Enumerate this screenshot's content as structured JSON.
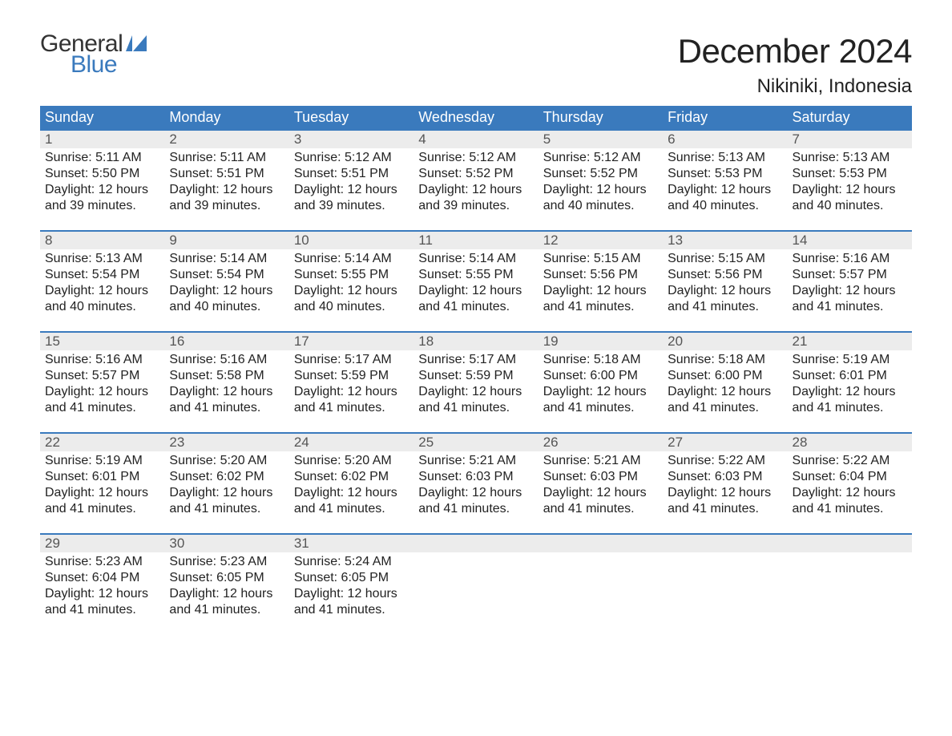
{
  "logo": {
    "text_general": "General",
    "text_blue": "Blue",
    "flag_color": "#3a7abd"
  },
  "title": "December 2024",
  "location": "Nikiniki, Indonesia",
  "colors": {
    "header_bg": "#3a7abd",
    "header_text": "#ffffff",
    "daynum_bg": "#ececec",
    "daynum_text": "#555555",
    "body_text": "#222222",
    "week_border": "#3a7abd",
    "page_bg": "#ffffff"
  },
  "typography": {
    "title_fontsize": 42,
    "location_fontsize": 24,
    "header_fontsize": 18,
    "daynum_fontsize": 17,
    "cell_fontsize": 16,
    "logo_fontsize": 30
  },
  "day_headers": [
    "Sunday",
    "Monday",
    "Tuesday",
    "Wednesday",
    "Thursday",
    "Friday",
    "Saturday"
  ],
  "weeks": [
    [
      {
        "n": "1",
        "sr": "Sunrise: 5:11 AM",
        "ss": "Sunset: 5:50 PM",
        "d1": "Daylight: 12 hours",
        "d2": "and 39 minutes."
      },
      {
        "n": "2",
        "sr": "Sunrise: 5:11 AM",
        "ss": "Sunset: 5:51 PM",
        "d1": "Daylight: 12 hours",
        "d2": "and 39 minutes."
      },
      {
        "n": "3",
        "sr": "Sunrise: 5:12 AM",
        "ss": "Sunset: 5:51 PM",
        "d1": "Daylight: 12 hours",
        "d2": "and 39 minutes."
      },
      {
        "n": "4",
        "sr": "Sunrise: 5:12 AM",
        "ss": "Sunset: 5:52 PM",
        "d1": "Daylight: 12 hours",
        "d2": "and 39 minutes."
      },
      {
        "n": "5",
        "sr": "Sunrise: 5:12 AM",
        "ss": "Sunset: 5:52 PM",
        "d1": "Daylight: 12 hours",
        "d2": "and 40 minutes."
      },
      {
        "n": "6",
        "sr": "Sunrise: 5:13 AM",
        "ss": "Sunset: 5:53 PM",
        "d1": "Daylight: 12 hours",
        "d2": "and 40 minutes."
      },
      {
        "n": "7",
        "sr": "Sunrise: 5:13 AM",
        "ss": "Sunset: 5:53 PM",
        "d1": "Daylight: 12 hours",
        "d2": "and 40 minutes."
      }
    ],
    [
      {
        "n": "8",
        "sr": "Sunrise: 5:13 AM",
        "ss": "Sunset: 5:54 PM",
        "d1": "Daylight: 12 hours",
        "d2": "and 40 minutes."
      },
      {
        "n": "9",
        "sr": "Sunrise: 5:14 AM",
        "ss": "Sunset: 5:54 PM",
        "d1": "Daylight: 12 hours",
        "d2": "and 40 minutes."
      },
      {
        "n": "10",
        "sr": "Sunrise: 5:14 AM",
        "ss": "Sunset: 5:55 PM",
        "d1": "Daylight: 12 hours",
        "d2": "and 40 minutes."
      },
      {
        "n": "11",
        "sr": "Sunrise: 5:14 AM",
        "ss": "Sunset: 5:55 PM",
        "d1": "Daylight: 12 hours",
        "d2": "and 41 minutes."
      },
      {
        "n": "12",
        "sr": "Sunrise: 5:15 AM",
        "ss": "Sunset: 5:56 PM",
        "d1": "Daylight: 12 hours",
        "d2": "and 41 minutes."
      },
      {
        "n": "13",
        "sr": "Sunrise: 5:15 AM",
        "ss": "Sunset: 5:56 PM",
        "d1": "Daylight: 12 hours",
        "d2": "and 41 minutes."
      },
      {
        "n": "14",
        "sr": "Sunrise: 5:16 AM",
        "ss": "Sunset: 5:57 PM",
        "d1": "Daylight: 12 hours",
        "d2": "and 41 minutes."
      }
    ],
    [
      {
        "n": "15",
        "sr": "Sunrise: 5:16 AM",
        "ss": "Sunset: 5:57 PM",
        "d1": "Daylight: 12 hours",
        "d2": "and 41 minutes."
      },
      {
        "n": "16",
        "sr": "Sunrise: 5:16 AM",
        "ss": "Sunset: 5:58 PM",
        "d1": "Daylight: 12 hours",
        "d2": "and 41 minutes."
      },
      {
        "n": "17",
        "sr": "Sunrise: 5:17 AM",
        "ss": "Sunset: 5:59 PM",
        "d1": "Daylight: 12 hours",
        "d2": "and 41 minutes."
      },
      {
        "n": "18",
        "sr": "Sunrise: 5:17 AM",
        "ss": "Sunset: 5:59 PM",
        "d1": "Daylight: 12 hours",
        "d2": "and 41 minutes."
      },
      {
        "n": "19",
        "sr": "Sunrise: 5:18 AM",
        "ss": "Sunset: 6:00 PM",
        "d1": "Daylight: 12 hours",
        "d2": "and 41 minutes."
      },
      {
        "n": "20",
        "sr": "Sunrise: 5:18 AM",
        "ss": "Sunset: 6:00 PM",
        "d1": "Daylight: 12 hours",
        "d2": "and 41 minutes."
      },
      {
        "n": "21",
        "sr": "Sunrise: 5:19 AM",
        "ss": "Sunset: 6:01 PM",
        "d1": "Daylight: 12 hours",
        "d2": "and 41 minutes."
      }
    ],
    [
      {
        "n": "22",
        "sr": "Sunrise: 5:19 AM",
        "ss": "Sunset: 6:01 PM",
        "d1": "Daylight: 12 hours",
        "d2": "and 41 minutes."
      },
      {
        "n": "23",
        "sr": "Sunrise: 5:20 AM",
        "ss": "Sunset: 6:02 PM",
        "d1": "Daylight: 12 hours",
        "d2": "and 41 minutes."
      },
      {
        "n": "24",
        "sr": "Sunrise: 5:20 AM",
        "ss": "Sunset: 6:02 PM",
        "d1": "Daylight: 12 hours",
        "d2": "and 41 minutes."
      },
      {
        "n": "25",
        "sr": "Sunrise: 5:21 AM",
        "ss": "Sunset: 6:03 PM",
        "d1": "Daylight: 12 hours",
        "d2": "and 41 minutes."
      },
      {
        "n": "26",
        "sr": "Sunrise: 5:21 AM",
        "ss": "Sunset: 6:03 PM",
        "d1": "Daylight: 12 hours",
        "d2": "and 41 minutes."
      },
      {
        "n": "27",
        "sr": "Sunrise: 5:22 AM",
        "ss": "Sunset: 6:03 PM",
        "d1": "Daylight: 12 hours",
        "d2": "and 41 minutes."
      },
      {
        "n": "28",
        "sr": "Sunrise: 5:22 AM",
        "ss": "Sunset: 6:04 PM",
        "d1": "Daylight: 12 hours",
        "d2": "and 41 minutes."
      }
    ],
    [
      {
        "n": "29",
        "sr": "Sunrise: 5:23 AM",
        "ss": "Sunset: 6:04 PM",
        "d1": "Daylight: 12 hours",
        "d2": "and 41 minutes."
      },
      {
        "n": "30",
        "sr": "Sunrise: 5:23 AM",
        "ss": "Sunset: 6:05 PM",
        "d1": "Daylight: 12 hours",
        "d2": "and 41 minutes."
      },
      {
        "n": "31",
        "sr": "Sunrise: 5:24 AM",
        "ss": "Sunset: 6:05 PM",
        "d1": "Daylight: 12 hours",
        "d2": "and 41 minutes."
      },
      null,
      null,
      null,
      null
    ]
  ]
}
